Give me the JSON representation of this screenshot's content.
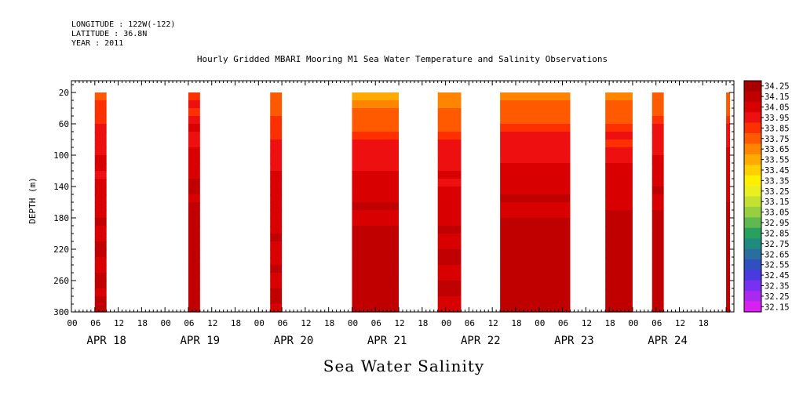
{
  "header": {
    "longitude": "LONGITUDE : 122W(-122)",
    "latitude": "LATITUDE : 36.8N",
    "year": "YEAR : 2011"
  },
  "title": "Hourly Gridded MBARI Mooring M1 Sea Water Temperature and Salinity Observations",
  "bottom_title": "Sea Water Salinity",
  "chart_data": {
    "type": "heatmap",
    "title": "Hourly Gridded MBARI Mooring M1 Sea Water Temperature and Salinity Observations",
    "xlabel": "",
    "ylabel": "DEPTH (m)",
    "ylim": [
      300,
      5
    ],
    "y_ticks": [
      20,
      60,
      100,
      140,
      180,
      220,
      260,
      300
    ],
    "x_start_hour": 0,
    "x_end_hour": 170,
    "x_tick_labels": [
      "00",
      "06",
      "12",
      "18",
      "00",
      "06",
      "12",
      "18",
      "00",
      "06",
      "12",
      "18",
      "00",
      "06",
      "12",
      "18",
      "00",
      "06",
      "12",
      "18",
      "00",
      "06",
      "12",
      "18",
      "00",
      "06",
      "12",
      "18"
    ],
    "date_labels": [
      "APR 18",
      "APR 19",
      "APR 20",
      "APR 21",
      "APR 22",
      "APR 23",
      "APR 24"
    ],
    "colorbar_levels": [
      "34.25",
      "34.15",
      "34.05",
      "33.95",
      "33.85",
      "33.75",
      "33.65",
      "33.55",
      "33.45",
      "33.35",
      "33.25",
      "33.15",
      "33.05",
      "32.95",
      "32.85",
      "32.75",
      "32.65",
      "32.55",
      "32.45",
      "32.35",
      "32.25",
      "32.15"
    ],
    "colorbar_colors": [
      "#a80000",
      "#c00000",
      "#d80000",
      "#ee1010",
      "#ff3000",
      "#ff5a00",
      "#ff8400",
      "#ffaa00",
      "#ffd000",
      "#fff000",
      "#eaf020",
      "#c4e030",
      "#96d040",
      "#60b850",
      "#28a060",
      "#1e8c7c",
      "#2a6ea0",
      "#3050c0",
      "#4a38e0",
      "#7a30f0",
      "#aa28f0",
      "#d820f0"
    ],
    "data_blocks": [
      {
        "start_hour": 6,
        "end_hour": 9,
        "surface": 33.75,
        "deep": 34.1
      },
      {
        "start_hour": 30,
        "end_hour": 33,
        "surface": 33.85,
        "deep": 34.15
      },
      {
        "start_hour": 51,
        "end_hour": 54,
        "surface": 33.7,
        "deep": 34.1
      },
      {
        "start_hour": 72,
        "end_hour": 84,
        "surface": 33.55,
        "deep": 34.15
      },
      {
        "start_hour": 94,
        "end_hour": 100,
        "surface": 33.6,
        "deep": 34.1
      },
      {
        "start_hour": 110,
        "end_hour": 128,
        "surface": 33.6,
        "deep": 34.15
      },
      {
        "start_hour": 137,
        "end_hour": 144,
        "surface": 33.6,
        "deep": 34.15
      },
      {
        "start_hour": 149,
        "end_hour": 152,
        "surface": 33.7,
        "deep": 34.15
      },
      {
        "start_hour": 168,
        "end_hour": 169,
        "surface": 33.7,
        "deep": 34.15
      }
    ]
  }
}
